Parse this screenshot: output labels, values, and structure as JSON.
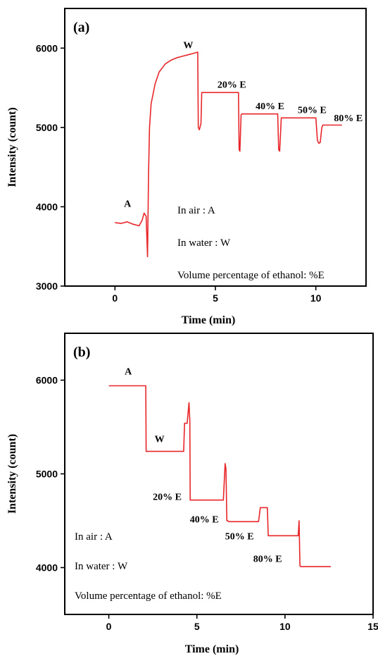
{
  "chart_data": [
    {
      "type": "line",
      "panel_label": "(a)",
      "xlabel": "Time (min)",
      "ylabel": "Intensity (count)",
      "xlim": [
        -2.5,
        12.5
      ],
      "ylim": [
        3000,
        6500
      ],
      "xticks": [
        0,
        5,
        10
      ],
      "yticks": [
        3000,
        4000,
        5000,
        6000
      ],
      "color": "#e8262a",
      "series": [
        {
          "x": [
            0,
            0.3,
            0.6,
            0.9,
            1.2,
            1.35,
            1.45,
            1.55,
            1.62,
            1.67,
            1.72,
            1.8,
            2.0,
            2.2,
            2.5,
            2.8,
            3.1,
            3.4,
            3.7,
            4.0,
            4.12,
            4.15,
            4.2,
            4.28,
            4.32,
            4.38,
            4.5,
            5.0,
            5.5,
            6.0,
            6.15,
            6.18,
            6.22,
            6.28,
            6.32,
            7.0,
            7.5,
            8.1,
            8.15,
            8.2,
            8.28,
            8.32,
            9.0,
            9.5,
            10.0,
            10.08,
            10.15,
            10.22,
            10.3,
            10.35,
            11.0,
            11.3
          ],
          "y": [
            3800,
            3790,
            3810,
            3780,
            3760,
            3830,
            3920,
            3880,
            3370,
            4400,
            5000,
            5300,
            5550,
            5700,
            5800,
            5850,
            5880,
            5900,
            5920,
            5940,
            5950,
            5000,
            4970,
            5050,
            5440,
            5440,
            5440,
            5440,
            5440,
            5440,
            5440,
            4720,
            4700,
            5160,
            5170,
            5170,
            5170,
            5170,
            4720,
            4700,
            5120,
            5120,
            5120,
            5120,
            5120,
            4840,
            4800,
            4810,
            5000,
            5030,
            5030,
            5030
          ]
        }
      ],
      "annotations": [
        {
          "text": "A",
          "x": 0.45,
          "y": 4000
        },
        {
          "text": "W",
          "x": 3.4,
          "y": 6000
        },
        {
          "text": "20% E",
          "x": 5.1,
          "y": 5500
        },
        {
          "text": "40% E",
          "x": 7.0,
          "y": 5230
        },
        {
          "text": "50% E",
          "x": 9.1,
          "y": 5180
        },
        {
          "text": "80% E",
          "x": 10.9,
          "y": 5080
        }
      ],
      "legend_lines": [
        "In air : A",
        "In water : W",
        "Volume percentage of ethanol: %E"
      ]
    },
    {
      "type": "line",
      "panel_label": "(b)",
      "xlabel": "Time (min)",
      "ylabel": "Intensity (count)",
      "xlim": [
        -2.5,
        15
      ],
      "ylim": [
        3500,
        6500
      ],
      "xticks": [
        0,
        5,
        10,
        15
      ],
      "yticks": [
        4000,
        5000,
        6000
      ],
      "color": "#e8262a",
      "series": [
        {
          "x": [
            0,
            1.0,
            2.1,
            2.12,
            2.5,
            3.0,
            3.5,
            4.25,
            4.3,
            4.45,
            4.55,
            4.6,
            4.62,
            4.66,
            4.7,
            5.5,
            6.5,
            6.6,
            6.65,
            6.7,
            6.75,
            6.8,
            7.5,
            8.5,
            8.6,
            8.7,
            9.0,
            9.05,
            9.5,
            10.5,
            10.75,
            10.8,
            10.85,
            10.9,
            11.5,
            12.6
          ],
          "y": [
            5940,
            5940,
            5940,
            5240,
            5240,
            5240,
            5240,
            5240,
            5540,
            5540,
            5760,
            5560,
            4720,
            4720,
            4720,
            4720,
            4720,
            5110,
            5050,
            4500,
            4500,
            4490,
            4490,
            4490,
            4640,
            4640,
            4640,
            4340,
            4340,
            4340,
            4340,
            4500,
            4020,
            4010,
            4010,
            4010
          ]
        }
      ],
      "annotations": [
        {
          "text": "A",
          "x": 0.9,
          "y": 6060
        },
        {
          "text": "W",
          "x": 2.6,
          "y": 5340
        },
        {
          "text": "20% E",
          "x": 2.5,
          "y": 4720
        },
        {
          "text": "40% E",
          "x": 4.6,
          "y": 4480
        },
        {
          "text": "50% E",
          "x": 6.6,
          "y": 4300
        },
        {
          "text": "80% E",
          "x": 8.2,
          "y": 4060
        }
      ],
      "legend_lines": [
        "In air : A",
        "In water : W",
        "Volume percentage of ethanol: %E"
      ]
    }
  ]
}
